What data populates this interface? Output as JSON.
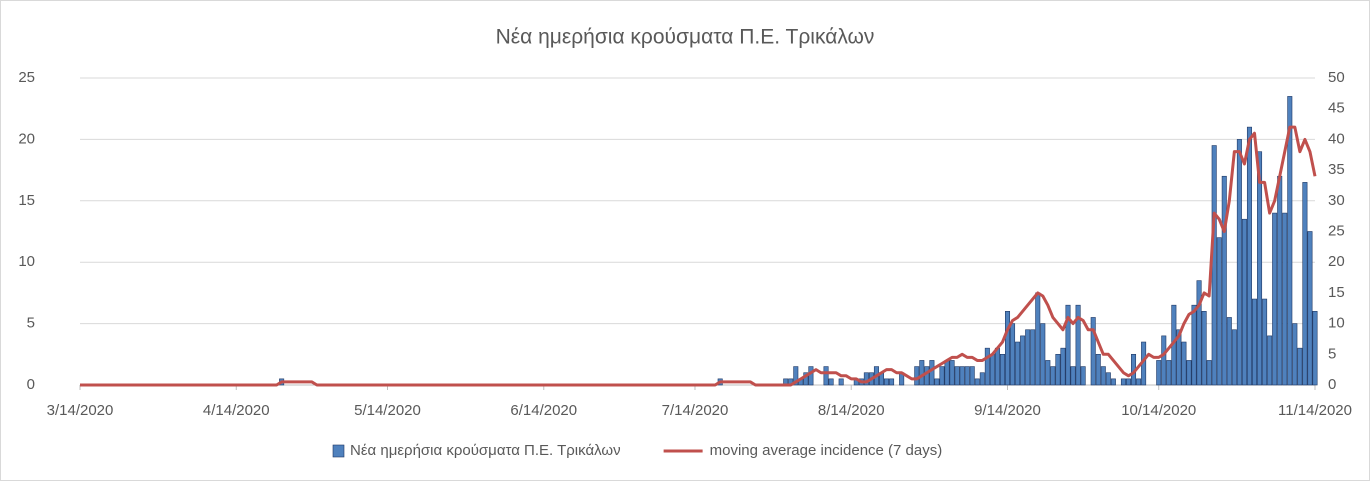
{
  "chart_data": {
    "type": "bar-line",
    "title": "Νέα ημερήσια κρούσματα Π.Ε. Τρικάλων",
    "x": [
      "3/14/2020",
      "4/22/2020",
      "4/23/2020",
      "4/29/2020",
      "4/30/2020",
      "7/18/2020",
      "7/19/2020",
      "7/25/2020",
      "7/26/2020",
      "7/31/2020",
      "8/1/2020",
      "8/2/2020",
      "8/3/2020",
      "8/4/2020",
      "8/5/2020",
      "8/6/2020",
      "8/7/2020",
      "8/8/2020",
      "8/9/2020",
      "8/10/2020",
      "8/11/2020",
      "8/12/2020",
      "8/13/2020",
      "8/14/2020",
      "8/15/2020",
      "8/16/2020",
      "8/17/2020",
      "8/18/2020",
      "8/19/2020",
      "8/20/2020",
      "8/21/2020",
      "8/22/2020",
      "8/23/2020",
      "8/24/2020",
      "8/25/2020",
      "8/26/2020",
      "8/27/2020",
      "8/28/2020",
      "8/29/2020",
      "8/30/2020",
      "8/31/2020",
      "9/1/2020",
      "9/2/2020",
      "9/3/2020",
      "9/4/2020",
      "9/5/2020",
      "9/6/2020",
      "9/7/2020",
      "9/8/2020",
      "9/9/2020",
      "9/10/2020",
      "9/11/2020",
      "9/12/2020",
      "9/13/2020",
      "9/14/2020",
      "9/15/2020",
      "9/16/2020",
      "9/17/2020",
      "9/18/2020",
      "9/19/2020",
      "9/20/2020",
      "9/21/2020",
      "9/22/2020",
      "9/23/2020",
      "9/24/2020",
      "9/25/2020",
      "9/26/2020",
      "9/27/2020",
      "9/28/2020",
      "9/29/2020",
      "9/30/2020",
      "10/1/2020",
      "10/2/2020",
      "10/3/2020",
      "10/4/2020",
      "10/5/2020",
      "10/6/2020",
      "10/7/2020",
      "10/8/2020",
      "10/9/2020",
      "10/10/2020",
      "10/11/2020",
      "10/12/2020",
      "10/13/2020",
      "10/14/2020",
      "10/15/2020",
      "10/16/2020",
      "10/17/2020",
      "10/18/2020",
      "10/19/2020",
      "10/20/2020",
      "10/21/2020",
      "10/22/2020",
      "10/23/2020",
      "10/24/2020",
      "10/25/2020",
      "10/26/2020",
      "10/27/2020",
      "10/28/2020",
      "10/29/2020",
      "10/30/2020",
      "10/31/2020",
      "11/1/2020",
      "11/2/2020",
      "11/3/2020",
      "11/4/2020",
      "11/5/2020",
      "11/6/2020",
      "11/7/2020",
      "11/8/2020",
      "11/9/2020",
      "11/10/2020",
      "11/11/2020",
      "11/12/2020",
      "11/13/2020",
      "11/14/2020"
    ],
    "series": [
      {
        "name": "Νέα ημερήσια κρούσματα Π.Ε. Τρικάλων",
        "type": "bar",
        "color": "#4f81bd",
        "values": [
          0,
          0,
          0.5,
          0,
          0,
          0,
          0.5,
          0,
          0,
          0,
          0.5,
          0.5,
          1.5,
          0.5,
          1,
          1.5,
          0,
          0,
          1.5,
          0.5,
          0,
          0.5,
          0,
          0,
          0.5,
          0.5,
          1,
          1,
          1.5,
          1,
          0.5,
          0.5,
          0,
          1,
          0,
          0,
          1.5,
          2,
          1.5,
          2,
          0.5,
          1.5,
          2,
          2,
          1.5,
          1.5,
          1.5,
          1.5,
          0.5,
          1,
          3,
          2.5,
          3,
          2.5,
          6,
          5,
          3.5,
          4,
          4.5,
          4.5,
          7.5,
          5,
          2,
          1.5,
          2.5,
          3,
          6.5,
          1.5,
          6.5,
          1.5,
          0,
          5.5,
          2.5,
          1.5,
          1,
          0.5,
          0,
          0.5,
          0.5,
          2.5,
          0.5,
          3.5,
          0,
          0,
          2,
          4,
          2,
          6.5,
          4.5,
          3.5,
          2,
          6.5,
          8.5,
          6,
          2,
          19.5,
          12,
          17,
          5.5,
          4.5,
          20,
          13.5,
          21,
          7,
          19,
          7,
          4,
          14,
          17,
          14,
          23.5,
          5,
          3,
          16.5,
          12.5,
          6
        ]
      },
      {
        "name": "moving average incidence (7 days)",
        "type": "line",
        "axis": "y2",
        "color": "#c0504d",
        "values": [
          0,
          0,
          0.5,
          0.5,
          0,
          0,
          0.5,
          0.5,
          0,
          0,
          0,
          0,
          0.5,
          1,
          1.5,
          2,
          2.5,
          2,
          2,
          2,
          2,
          1.5,
          1.5,
          1,
          1,
          0.5,
          0.5,
          1,
          1.5,
          2,
          2.5,
          2.5,
          2,
          2,
          1.5,
          1,
          1,
          1.5,
          2,
          2.5,
          3,
          3.5,
          4,
          4.5,
          4.5,
          5,
          4.5,
          4.5,
          4,
          4,
          4.5,
          5,
          6,
          7,
          9,
          10.5,
          11,
          12,
          13,
          14,
          15,
          14.5,
          13,
          11,
          10,
          9,
          11,
          10,
          11,
          10.5,
          9,
          9,
          7,
          5,
          5,
          4,
          3,
          2,
          1.5,
          2,
          3,
          4,
          5,
          4.5,
          4.5,
          5,
          6,
          7,
          8,
          10,
          11.5,
          12,
          13,
          15,
          14.5,
          28,
          27,
          25,
          30,
          38,
          38,
          36,
          40,
          41,
          33,
          33,
          28,
          30,
          34,
          38,
          42,
          42,
          38,
          40,
          38,
          34
        ]
      }
    ],
    "xlim": [
      "3/14/2020",
      "11/14/2020"
    ],
    "xticks": [
      "3/14/2020",
      "4/14/2020",
      "5/14/2020",
      "6/14/2020",
      "7/14/2020",
      "8/14/2020",
      "9/14/2020",
      "10/14/2020",
      "11/14/2020"
    ],
    "ylim": [
      0,
      25
    ],
    "yticks": [
      0,
      5,
      10,
      15,
      20,
      25
    ],
    "y2lim": [
      0,
      50
    ],
    "y2ticks": [
      0,
      5,
      10,
      15,
      20,
      25,
      30,
      35,
      40,
      45,
      50
    ],
    "grid": true,
    "legend": "bottom"
  }
}
